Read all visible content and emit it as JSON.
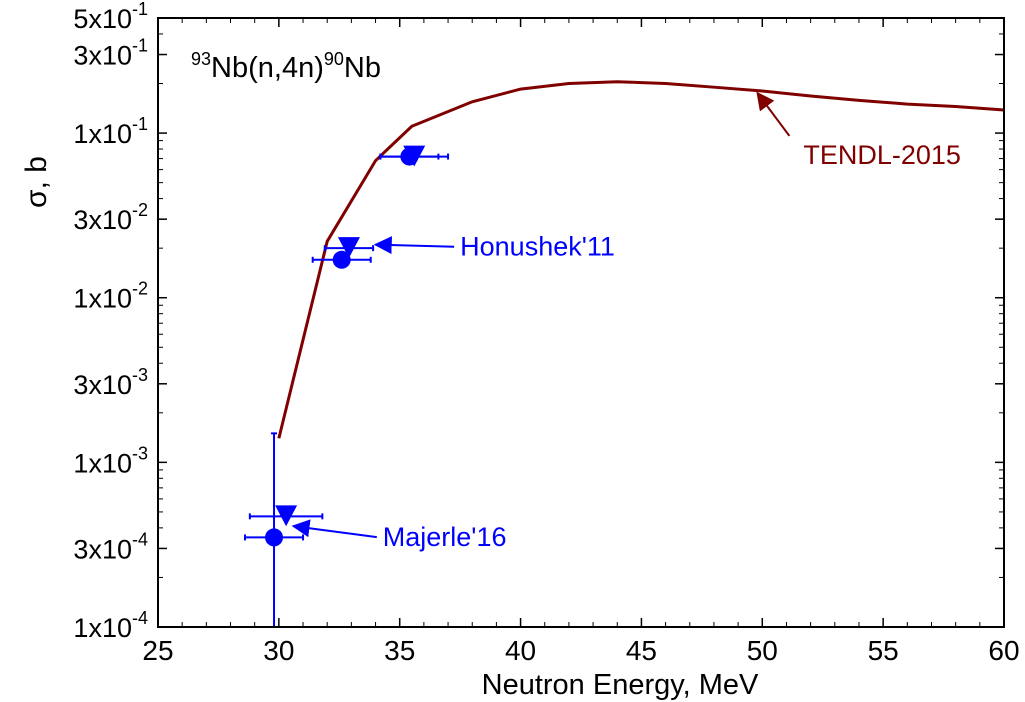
{
  "chart_data": {
    "type": "scatter",
    "reaction_label": {
      "pre_sup": "93",
      "mid": "Nb(n,4n)",
      "post_sup": "90",
      "post": "Nb"
    },
    "xlabel": "Neutron Energy,  MeV",
    "ylabel": "σ, b",
    "xlim": [
      25,
      60
    ],
    "ylim": [
      0.0001,
      0.5
    ],
    "yscale": "log",
    "grid": false,
    "x_ticks": [
      25,
      30,
      35,
      40,
      45,
      50,
      55,
      60
    ],
    "y_ticks": [
      {
        "value": 0.0001,
        "mantissa": "1x10",
        "exp": "-4"
      },
      {
        "value": 0.0003,
        "mantissa": "3x10",
        "exp": "-4"
      },
      {
        "value": 0.001,
        "mantissa": "1x10",
        "exp": "-3"
      },
      {
        "value": 0.003,
        "mantissa": "3x10",
        "exp": "-3"
      },
      {
        "value": 0.01,
        "mantissa": "1x10",
        "exp": "-2"
      },
      {
        "value": 0.03,
        "mantissa": "3x10",
        "exp": "-2"
      },
      {
        "value": 0.1,
        "mantissa": "1x10",
        "exp": "-1"
      },
      {
        "value": 0.3,
        "mantissa": "3x10",
        "exp": "-1"
      },
      {
        "value": 0.5,
        "mantissa": "5x10",
        "exp": "-1"
      }
    ],
    "series": [
      {
        "name": "TENDL-2015",
        "kind": "line",
        "color": "#800000",
        "x": [
          30,
          32,
          34,
          35.5,
          38,
          40,
          42,
          44,
          46,
          48,
          50,
          52,
          54,
          56,
          58,
          60
        ],
        "y": [
          0.0014,
          0.022,
          0.068,
          0.11,
          0.155,
          0.185,
          0.2,
          0.205,
          0.2,
          0.19,
          0.18,
          0.168,
          0.158,
          0.15,
          0.145,
          0.138
        ]
      },
      {
        "name": "Honushek'11",
        "kind": "points",
        "marker": "triangle-down",
        "color": "#0000ff",
        "points": [
          {
            "x": 30.3,
            "y": 0.00047,
            "xerr": 1.5
          },
          {
            "x": 32.9,
            "y": 0.02,
            "xerr": 1.0
          },
          {
            "x": 35.6,
            "y": 0.072,
            "xerr": 1.4
          }
        ]
      },
      {
        "name": "Majerle'16",
        "kind": "points",
        "marker": "circle",
        "color": "#0000ff",
        "points": [
          {
            "x": 29.8,
            "y": 0.00035,
            "xerr": 1.2,
            "ylo": 0.0001,
            "yhi": 0.0015
          },
          {
            "x": 32.6,
            "y": 0.017,
            "xerr": 1.2
          },
          {
            "x": 35.4,
            "y": 0.072,
            "xerr": 1.2
          }
        ]
      }
    ],
    "annotations": [
      {
        "text": "TENDL-2015",
        "color": "#800000",
        "text_x": 51.7,
        "text_y": 0.065,
        "arrow_x": 49.8,
        "arrow_y": 0.175
      },
      {
        "text": "Honushek'11",
        "color": "#0000ff",
        "text_x": 37.5,
        "text_y": 0.018,
        "arrow_x": 34.0,
        "arrow_y": 0.021
      },
      {
        "text": "Majerle'16",
        "color": "#0000ff",
        "text_x": 34.3,
        "text_y": 0.00031,
        "arrow_x": 30.6,
        "arrow_y": 0.00041
      }
    ]
  }
}
